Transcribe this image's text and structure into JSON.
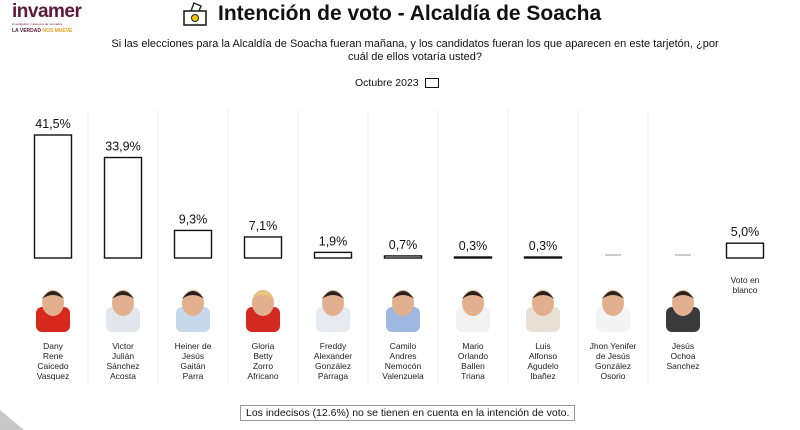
{
  "logo": {
    "brand": "invamer",
    "subtitle": "investigación y asesoría de mercados",
    "tagline_a": "LA VERDAD ",
    "tagline_b": "NOS MUEVE"
  },
  "header": {
    "title": "Intención de voto - Alcaldía de Soacha",
    "icon": "ballot-box-icon"
  },
  "question": "Si las elecciones para la Alcaldía de Soacha fueran mañana, y los candidatos fueran los que aparecen en este tarjetón, ¿por cuál de ellos votaría usted?",
  "note": "Los indecisos (12.6%) no se tienen en cuenta en la intención de voto.",
  "chart_data": {
    "type": "bar",
    "title": "Intención de voto - Alcaldía de Soacha",
    "legend": [
      {
        "name": "Octubre 2023",
        "color": "#ffffff"
      }
    ],
    "legend_placement": "top-center",
    "categories": [
      "Dany Rene Caicedo Vasquez",
      "Victor Julián Sánchez Acosta",
      "Heiner de Jesús Gaitán Parra",
      "Gloria Betty Zorro Africano",
      "Freddy Alexander González Párraga",
      "Camilo Andres Nemocón Valenzuela",
      "Mario Orlando Ballen Triana",
      "Luis Alfonso Agudelo Ibañez",
      "Jhon Yenifer de Jesús González Osorio",
      "Jesús Ochoa Sanchez",
      "Voto en blanco"
    ],
    "values": [
      41.5,
      33.9,
      9.3,
      7.1,
      1.9,
      0.7,
      0.3,
      0.3,
      null,
      null,
      5.0
    ],
    "labels": [
      "41,5%",
      "33,9%",
      "9,3%",
      "7,1%",
      "1,9%",
      "0,7%",
      "0,3%",
      "0,3%",
      "—",
      "—",
      "5,0%"
    ],
    "ylim": [
      0,
      45
    ],
    "grid": false
  },
  "candidates": [
    {
      "lines": [
        "Dany",
        "Rene",
        "Caicedo",
        "Vasquez"
      ],
      "photo": true,
      "shirt": "#d8281e"
    },
    {
      "lines": [
        "Victor",
        "Julián",
        "Sánchez",
        "Acosta"
      ],
      "photo": true,
      "shirt": "#e4e6ee"
    },
    {
      "lines": [
        "Heiner de",
        "Jesús",
        "Gaitán",
        "Parra"
      ],
      "photo": true,
      "shirt": "#c6d8ea"
    },
    {
      "lines": [
        "Gloria",
        "Betty",
        "Zorro",
        "Africano"
      ],
      "photo": true,
      "shirt": "#d22a20"
    },
    {
      "lines": [
        "Freddy",
        "Alexander",
        "González",
        "Párraga"
      ],
      "photo": true,
      "shirt": "#e8eaf2"
    },
    {
      "lines": [
        "Camilo",
        "Andres",
        "Nemocón",
        "Valenzuela"
      ],
      "photo": true,
      "shirt": "#9fb8e0"
    },
    {
      "lines": [
        "Mario",
        "Orlando",
        "Ballen",
        "Triana"
      ],
      "photo": true,
      "shirt": "#f2f2f2"
    },
    {
      "lines": [
        "Luis",
        "Alfonso",
        "Agudelo",
        "Ibañez"
      ],
      "photo": true,
      "shirt": "#e8e0d4"
    },
    {
      "lines": [
        "Jhon Yenifer",
        "de Jesús",
        "González",
        "Osorio"
      ],
      "photo": true,
      "shirt": "#f4f4f4"
    },
    {
      "lines": [
        "Jesús",
        "Ochoa",
        "Sanchez"
      ],
      "photo": true,
      "shirt": "#3a3a3a"
    },
    {
      "lines": [
        "Voto en",
        "blanco"
      ],
      "photo": false
    }
  ]
}
